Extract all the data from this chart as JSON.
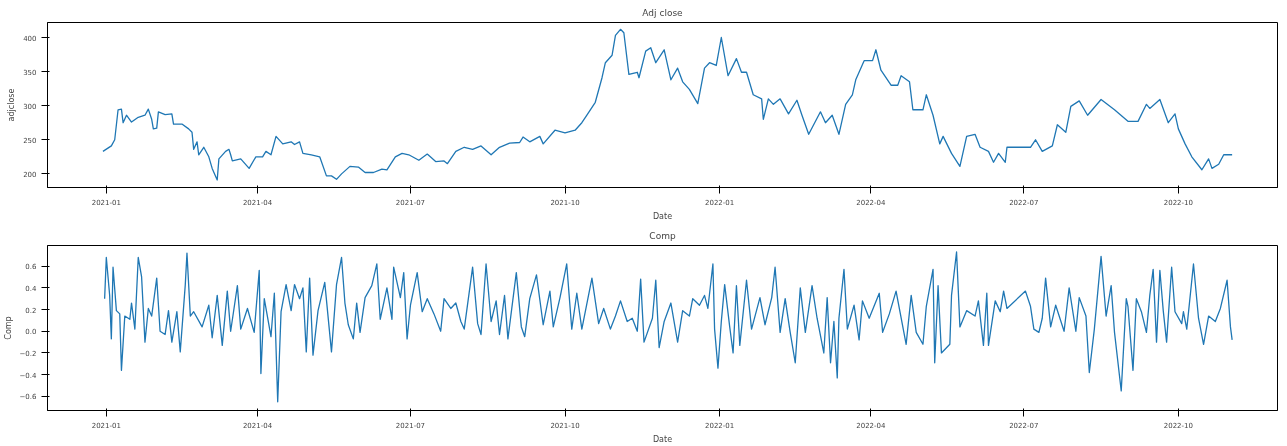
{
  "chart_data": [
    {
      "type": "line",
      "title": "Adj close",
      "xlabel": "Date",
      "ylabel": "adjclose",
      "color": "#1f77b4",
      "xlim": [
        "2020-11-27",
        "2022-11-29"
      ],
      "ylim": [
        180,
        422
      ],
      "xticks": [
        "2021-01",
        "2021-04",
        "2021-07",
        "2021-10",
        "2022-01",
        "2022-04",
        "2022-07",
        "2022-10"
      ],
      "yticks": [
        200,
        250,
        300,
        350,
        400
      ],
      "x": [
        "2020-12-30",
        "2021-01-04",
        "2021-01-06",
        "2021-01-08",
        "2021-01-10",
        "2021-01-11",
        "2021-01-13",
        "2021-01-16",
        "2021-01-20",
        "2021-01-24",
        "2021-01-26",
        "2021-01-28",
        "2021-01-29",
        "2021-01-31",
        "2021-02-01",
        "2021-02-05",
        "2021-02-09",
        "2021-02-10",
        "2021-02-15",
        "2021-02-19",
        "2021-02-21",
        "2021-02-22",
        "2021-02-24",
        "2021-02-25",
        "2021-02-28",
        "2021-03-03",
        "2021-03-05",
        "2021-03-08",
        "2021-03-09",
        "2021-03-13",
        "2021-03-15",
        "2021-03-16",
        "2021-03-17",
        "2021-03-22",
        "2021-03-27",
        "2021-03-31",
        "2021-04-04",
        "2021-04-06",
        "2021-04-09",
        "2021-04-12",
        "2021-04-16",
        "2021-04-21",
        "2021-04-23",
        "2021-04-26",
        "2021-04-28",
        "2021-05-03",
        "2021-05-08",
        "2021-05-12",
        "2021-05-15",
        "2021-05-18",
        "2021-05-21",
        "2021-05-26",
        "2021-05-31",
        "2021-06-04",
        "2021-06-09",
        "2021-06-14",
        "2021-06-17",
        "2021-06-22",
        "2021-06-26",
        "2021-06-30",
        "2021-07-06",
        "2021-07-11",
        "2021-07-16",
        "2021-07-21",
        "2021-07-23",
        "2021-07-28",
        "2021-08-02",
        "2021-08-07",
        "2021-08-12",
        "2021-08-18",
        "2021-08-23",
        "2021-08-29",
        "2021-09-04",
        "2021-09-06",
        "2021-09-10",
        "2021-09-16",
        "2021-09-18",
        "2021-09-25",
        "2021-10-01",
        "2021-10-07",
        "2021-10-11",
        "2021-10-14",
        "2021-10-19",
        "2021-10-23",
        "2021-10-25",
        "2021-10-29",
        "2021-10-31",
        "2021-11-03",
        "2021-11-05",
        "2021-11-08",
        "2021-11-13",
        "2021-11-14",
        "2021-11-18",
        "2021-11-21",
        "2021-11-24",
        "2021-11-29",
        "2021-12-03",
        "2021-12-07",
        "2021-12-10",
        "2021-12-14",
        "2021-12-19",
        "2021-12-23",
        "2021-12-26",
        "2021-12-30",
        "2022-01-02",
        "2022-01-06",
        "2022-01-11",
        "2022-01-14",
        "2022-01-17",
        "2022-01-21",
        "2022-01-26",
        "2022-01-27",
        "2022-01-30",
        "2022-02-02",
        "2022-02-06",
        "2022-02-11",
        "2022-02-16",
        "2022-02-19",
        "2022-02-23",
        "2022-03-02",
        "2022-03-05",
        "2022-03-09",
        "2022-03-13",
        "2022-03-17",
        "2022-03-21",
        "2022-03-23",
        "2022-03-28",
        "2022-04-02",
        "2022-04-04",
        "2022-04-07",
        "2022-04-13",
        "2022-04-17",
        "2022-04-19",
        "2022-04-24",
        "2022-04-26",
        "2022-05-02",
        "2022-05-04",
        "2022-05-08",
        "2022-05-12",
        "2022-05-14",
        "2022-05-19",
        "2022-05-24",
        "2022-05-28",
        "2022-06-02",
        "2022-06-05",
        "2022-06-10",
        "2022-06-13",
        "2022-06-16",
        "2022-06-20",
        "2022-06-21",
        "2022-07-05",
        "2022-07-08",
        "2022-07-12",
        "2022-07-18",
        "2022-07-21",
        "2022-07-26",
        "2022-07-29",
        "2022-08-03",
        "2022-08-08",
        "2022-08-16",
        "2022-08-24",
        "2022-09-01",
        "2022-09-07",
        "2022-09-12",
        "2022-09-14",
        "2022-09-20",
        "2022-09-25",
        "2022-09-29",
        "2022-10-01",
        "2022-10-05",
        "2022-10-09",
        "2022-10-15",
        "2022-10-19",
        "2022-10-21",
        "2022-10-25",
        "2022-10-28",
        "2022-11-02"
      ],
      "values": [
        233,
        241,
        250,
        294,
        295,
        275,
        286,
        276,
        283,
        286,
        295,
        280,
        266,
        267,
        291,
        287,
        288,
        273,
        273,
        266,
        261,
        236,
        247,
        228,
        239,
        225,
        208,
        191,
        222,
        233,
        236,
        228,
        219,
        222,
        208,
        225,
        225,
        233,
        228,
        255,
        244,
        247,
        243,
        247,
        230,
        228,
        225,
        197,
        197,
        192,
        200,
        211,
        210,
        202,
        202,
        207,
        206,
        225,
        230,
        228,
        220,
        229,
        218,
        219,
        215,
        233,
        239,
        236,
        241,
        228,
        239,
        245,
        246,
        254,
        247,
        255,
        244,
        264,
        260,
        264,
        275,
        286,
        305,
        341,
        363,
        374,
        403,
        412,
        407,
        346,
        349,
        341,
        380,
        385,
        363,
        382,
        338,
        355,
        335,
        324,
        303,
        355,
        363,
        359,
        400,
        344,
        369,
        349,
        349,
        316,
        310,
        280,
        310,
        302,
        310,
        288,
        308,
        286,
        258,
        291,
        275,
        286,
        258,
        302,
        316,
        338,
        366,
        366,
        382,
        352,
        330,
        330,
        344,
        335,
        294,
        294,
        316,
        286,
        244,
        255,
        230,
        211,
        255,
        258,
        239,
        233,
        217,
        230,
        217,
        239,
        239,
        250,
        233,
        241,
        272,
        261,
        299,
        307,
        286,
        309,
        294,
        277,
        277,
        302,
        296,
        309,
        275,
        288,
        266,
        244,
        225,
        206,
        222,
        208,
        214,
        228,
        228
      ]
    },
    {
      "type": "line",
      "title": "Comp",
      "xlabel": "Date",
      "ylabel": "Comp",
      "color": "#1f77b4",
      "xlim": [
        "2020-11-27",
        "2022-11-29"
      ],
      "ylim": [
        -0.73,
        0.79
      ],
      "xticks": [
        "2021-01",
        "2021-04",
        "2021-07",
        "2021-10",
        "2022-01",
        "2022-04",
        "2022-07",
        "2022-10"
      ],
      "yticks": [
        {
          "value": -0.6,
          "label": "−0.6"
        },
        {
          "value": -0.4,
          "label": "−0.4"
        },
        {
          "value": -0.2,
          "label": "−0.2"
        },
        {
          "value": 0,
          "label": "0.0"
        },
        0.2,
        0.4,
        0.6
      ],
      "x": [
        "2020-12-31",
        "2021-01-01",
        "2021-01-03",
        "2021-01-04",
        "2021-01-05",
        "2021-01-07",
        "2021-01-09",
        "2021-01-10",
        "2021-01-12",
        "2021-01-15",
        "2021-01-16",
        "2021-01-18",
        "2021-01-20",
        "2021-01-22",
        "2021-01-24",
        "2021-01-26",
        "2021-01-28",
        "2021-01-31",
        "2021-02-02",
        "2021-02-05",
        "2021-02-07",
        "2021-02-09",
        "2021-02-12",
        "2021-02-14",
        "2021-02-17",
        "2021-02-18",
        "2021-02-20",
        "2021-02-22",
        "2021-02-27",
        "2021-03-03",
        "2021-03-05",
        "2021-03-08",
        "2021-03-11",
        "2021-03-14",
        "2021-03-16",
        "2021-03-20",
        "2021-03-22",
        "2021-03-26",
        "2021-03-30",
        "2021-04-02",
        "2021-04-03",
        "2021-04-05",
        "2021-04-09",
        "2021-04-11",
        "2021-04-13",
        "2021-04-15",
        "2021-04-18",
        "2021-04-21",
        "2021-04-23",
        "2021-04-26",
        "2021-04-28",
        "2021-04-30",
        "2021-05-02",
        "2021-05-04",
        "2021-05-07",
        "2021-05-11",
        "2021-05-15",
        "2021-05-18",
        "2021-05-21",
        "2021-05-23",
        "2021-05-25",
        "2021-05-28",
        "2021-05-30",
        "2021-06-01",
        "2021-06-04",
        "2021-06-08",
        "2021-06-11",
        "2021-06-13",
        "2021-06-17",
        "2021-06-20",
        "2021-06-21",
        "2021-06-25",
        "2021-06-27",
        "2021-06-29",
        "2021-07-01",
        "2021-07-05",
        "2021-07-08",
        "2021-07-11",
        "2021-07-15",
        "2021-07-19",
        "2021-07-21",
        "2021-07-25",
        "2021-07-28",
        "2021-07-31",
        "2021-08-02",
        "2021-08-07",
        "2021-08-10",
        "2021-08-12",
        "2021-08-15",
        "2021-08-18",
        "2021-08-21",
        "2021-08-23",
        "2021-08-26",
        "2021-08-28",
        "2021-09-02",
        "2021-09-05",
        "2021-09-07",
        "2021-09-10",
        "2021-09-14",
        "2021-09-18",
        "2021-09-22",
        "2021-09-24",
        "2021-09-28",
        "2021-10-02",
        "2021-10-05",
        "2021-10-08",
        "2021-10-11",
        "2021-10-17",
        "2021-10-21",
        "2021-10-24",
        "2021-10-28",
        "2021-10-31",
        "2021-11-03",
        "2021-11-07",
        "2021-11-10",
        "2021-11-13",
        "2021-11-15",
        "2021-11-17",
        "2021-11-22",
        "2021-11-24",
        "2021-11-26",
        "2021-11-29",
        "2021-12-03",
        "2021-12-07",
        "2021-12-10",
        "2021-12-14",
        "2021-12-16",
        "2021-12-20",
        "2021-12-23",
        "2021-12-25",
        "2021-12-28",
        "2021-12-29",
        "2021-12-31",
        "2022-01-02",
        "2022-01-04",
        "2022-01-07",
        "2022-01-09",
        "2022-01-11",
        "2022-01-13",
        "2022-01-17",
        "2022-01-20",
        "2022-01-25",
        "2022-01-28",
        "2022-02-01",
        "2022-02-03",
        "2022-02-06",
        "2022-02-09",
        "2022-02-12",
        "2022-02-15",
        "2022-02-18",
        "2022-02-21",
        "2022-02-25",
        "2022-02-28",
        "2022-03-04",
        "2022-03-06",
        "2022-03-08",
        "2022-03-10",
        "2022-03-12",
        "2022-03-13",
        "2022-03-16",
        "2022-03-18",
        "2022-03-22",
        "2022-03-25",
        "2022-03-27",
        "2022-03-31",
        "2022-04-06",
        "2022-04-08",
        "2022-04-12",
        "2022-04-16",
        "2022-04-22",
        "2022-04-25",
        "2022-04-28",
        "2022-05-02",
        "2022-05-04",
        "2022-05-08",
        "2022-05-09",
        "2022-05-11",
        "2022-05-13",
        "2022-05-18",
        "2022-05-19",
        "2022-05-22",
        "2022-05-24",
        "2022-05-28",
        "2022-06-02",
        "2022-06-04",
        "2022-06-07",
        "2022-06-09",
        "2022-06-10",
        "2022-06-14",
        "2022-06-17",
        "2022-06-19",
        "2022-06-21",
        "2022-07-02",
        "2022-07-05",
        "2022-07-07",
        "2022-07-10",
        "2022-07-12",
        "2022-07-14",
        "2022-07-17",
        "2022-07-20",
        "2022-07-25",
        "2022-07-28",
        "2022-08-01",
        "2022-08-03",
        "2022-08-07",
        "2022-08-09",
        "2022-08-12",
        "2022-08-16",
        "2022-08-19",
        "2022-08-22",
        "2022-08-24",
        "2022-08-28",
        "2022-08-31",
        "2022-09-01",
        "2022-09-04",
        "2022-09-06",
        "2022-09-09",
        "2022-09-12",
        "2022-09-14",
        "2022-09-16",
        "2022-09-18",
        "2022-09-20",
        "2022-09-22",
        "2022-09-24",
        "2022-09-27",
        "2022-09-29",
        "2022-10-03",
        "2022-10-04",
        "2022-10-06",
        "2022-10-10",
        "2022-10-13",
        "2022-10-16",
        "2022-10-19",
        "2022-10-23",
        "2022-10-26",
        "2022-10-30",
        "2022-11-01",
        "2022-11-02"
      ],
      "values": [
        0.3,
        0.68,
        0.33,
        -0.07,
        0.59,
        0.19,
        0.16,
        -0.36,
        0.14,
        0.11,
        0.26,
        0.02,
        0.68,
        0.5,
        -0.1,
        0.21,
        0.14,
        0.49,
        0.0,
        -0.03,
        0.19,
        -0.1,
        0.18,
        -0.19,
        0.43,
        0.72,
        0.14,
        0.18,
        0.04,
        0.24,
        -0.06,
        0.33,
        -0.13,
        0.37,
        0.0,
        0.42,
        0.02,
        0.21,
        -0.01,
        0.56,
        -0.39,
        0.3,
        -0.05,
        0.35,
        -0.65,
        0.18,
        0.43,
        0.19,
        0.43,
        0.3,
        0.4,
        -0.19,
        0.49,
        -0.22,
        0.19,
        0.45,
        -0.19,
        0.43,
        0.68,
        0.26,
        0.06,
        -0.07,
        0.26,
        -0.01,
        0.31,
        0.42,
        0.62,
        0.11,
        0.4,
        0.11,
        0.59,
        0.31,
        0.54,
        -0.07,
        0.24,
        0.54,
        0.18,
        0.3,
        0.16,
        0.0,
        0.3,
        0.21,
        0.26,
        0.09,
        0.02,
        0.59,
        0.07,
        -0.03,
        0.62,
        0.09,
        0.28,
        -0.03,
        0.33,
        -0.07,
        0.54,
        0.04,
        -0.05,
        0.3,
        0.52,
        0.06,
        0.37,
        0.04,
        0.31,
        0.62,
        0.02,
        0.35,
        0.02,
        0.49,
        0.07,
        0.21,
        0.02,
        0.14,
        0.28,
        0.09,
        0.12,
        0.0,
        0.48,
        -0.1,
        0.12,
        0.47,
        -0.15,
        0.09,
        0.26,
        -0.1,
        0.19,
        0.14,
        0.3,
        0.24,
        0.33,
        0.21,
        0.62,
        0.02,
        -0.34,
        0.09,
        0.43,
        0.04,
        -0.2,
        0.42,
        -0.13,
        0.47,
        0.02,
        0.31,
        0.06,
        0.31,
        0.59,
        -0.01,
        0.3,
        -0.01,
        -0.29,
        0.4,
        -0.01,
        0.42,
        0.12,
        -0.2,
        0.31,
        -0.29,
        0.09,
        -0.43,
        0.12,
        0.57,
        0.02,
        0.24,
        -0.08,
        0.28,
        0.12,
        0.35,
        -0.01,
        0.16,
        0.37,
        -0.12,
        0.33,
        -0.01,
        -0.12,
        0.23,
        0.57,
        -0.29,
        0.42,
        -0.2,
        -0.12,
        0.33,
        0.73,
        0.04,
        0.19,
        0.14,
        0.28,
        -0.13,
        0.35,
        -0.13,
        0.28,
        0.18,
        0.37,
        0.21,
        0.37,
        0.23,
        0.02,
        -0.01,
        0.12,
        0.49,
        0.04,
        0.24,
        0.0,
        0.4,
        0.0,
        0.31,
        0.14,
        -0.38,
        0.02,
        0.69,
        0.14,
        0.42,
        -0.01,
        -0.55,
        0.3,
        0.23,
        -0.36,
        0.3,
        0.18,
        -0.01,
        0.33,
        0.57,
        -0.1,
        0.56,
        0.19,
        -0.1,
        0.59,
        0.18,
        0.07,
        0.18,
        0.02,
        0.62,
        0.12,
        -0.12,
        0.14,
        0.09,
        0.21,
        0.47,
        0.04,
        -0.08
      ]
    }
  ]
}
